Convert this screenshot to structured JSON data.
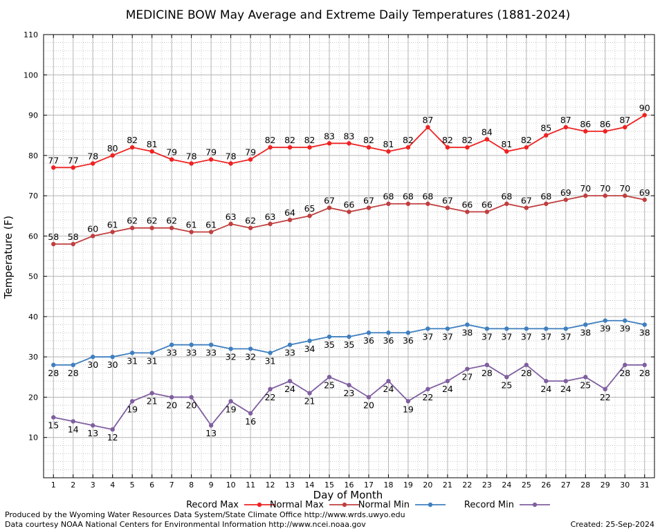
{
  "colors": {
    "record_max": "#ee2222",
    "normal_max": "#bf3f3f",
    "normal_min": "#3f7fbf",
    "record_min": "#7f5f9f",
    "grid": "#b4b4b4",
    "frame": "#000000"
  },
  "footer": {
    "produced_by": "Produced by the Wyoming Water Resources Data System/State Climate Office http://www.wrds.uwyo.edu",
    "data_courtesy": "Data courtesy NOAA National Centers for Environmental Information http://www.ncei.noaa.gov",
    "created": "Created:  25-Sep-2024"
  },
  "chart_data": {
    "type": "line",
    "title": "MEDICINE BOW May Average and Extreme Daily Temperatures (1881-2024)",
    "xlabel": "Day of Month",
    "ylabel": "Temperature (F)",
    "xlim": [
      0.5,
      31.5
    ],
    "ylim": [
      0,
      110
    ],
    "yticks": [
      10,
      20,
      30,
      40,
      50,
      60,
      70,
      80,
      90,
      100,
      110
    ],
    "x": [
      1,
      2,
      3,
      4,
      5,
      6,
      7,
      8,
      9,
      10,
      11,
      12,
      13,
      14,
      15,
      16,
      17,
      18,
      19,
      20,
      21,
      22,
      23,
      24,
      25,
      26,
      27,
      28,
      29,
      30,
      31
    ],
    "grid": true,
    "legend_position": "bottom",
    "series": [
      {
        "name": "Record Max",
        "color_key": "record_max",
        "label_side": "above",
        "values": [
          77,
          77,
          78,
          80,
          82,
          81,
          79,
          78,
          79,
          78,
          79,
          82,
          82,
          82,
          83,
          83,
          82,
          81,
          82,
          87,
          82,
          82,
          84,
          81,
          82,
          85,
          87,
          86,
          86,
          87,
          90
        ]
      },
      {
        "name": "Normal Max",
        "color_key": "normal_max",
        "label_side": "above",
        "values": [
          58,
          58,
          60,
          61,
          62,
          62,
          62,
          61,
          61,
          63,
          62,
          63,
          64,
          65,
          67,
          66,
          67,
          68,
          68,
          68,
          67,
          66,
          66,
          68,
          67,
          68,
          69,
          70,
          70,
          70,
          69
        ]
      },
      {
        "name": "Normal Min",
        "color_key": "normal_min",
        "label_side": "below",
        "values": [
          28,
          28,
          30,
          30,
          31,
          31,
          33,
          33,
          33,
          32,
          32,
          31,
          33,
          34,
          35,
          35,
          36,
          36,
          36,
          37,
          37,
          38,
          37,
          37,
          37,
          37,
          37,
          38,
          39,
          39,
          38
        ]
      },
      {
        "name": "Record Min",
        "color_key": "record_min",
        "label_side": "below",
        "values": [
          15,
          14,
          13,
          12,
          19,
          21,
          20,
          20,
          13,
          19,
          16,
          22,
          24,
          21,
          25,
          23,
          20,
          24,
          19,
          22,
          24,
          27,
          28,
          25,
          28,
          24,
          24,
          25,
          22,
          28,
          28
        ]
      }
    ]
  }
}
